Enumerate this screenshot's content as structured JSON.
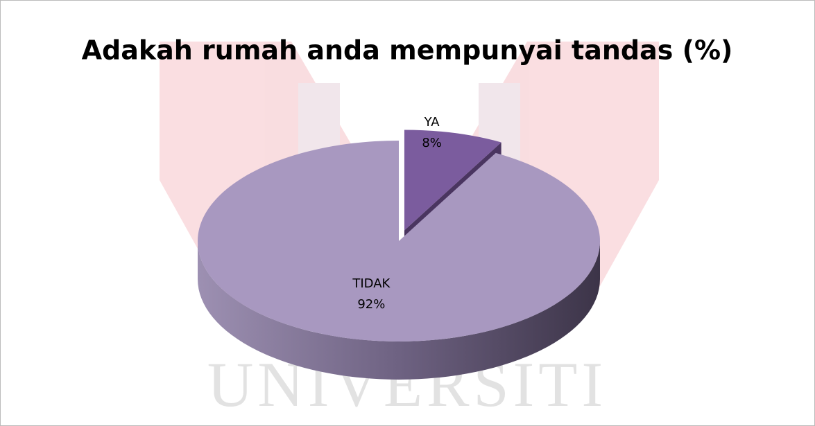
{
  "chart_data": {
    "type": "pie",
    "title": "Adakah rumah anda mempunyai tandas (%)",
    "categories": [
      "YA",
      "TIDAK"
    ],
    "values": [
      8,
      92
    ],
    "value_labels": [
      "8%",
      "92%"
    ],
    "colors": [
      "#7b5c9e",
      "#a898c0"
    ]
  },
  "watermark": "UNIVERSITI"
}
